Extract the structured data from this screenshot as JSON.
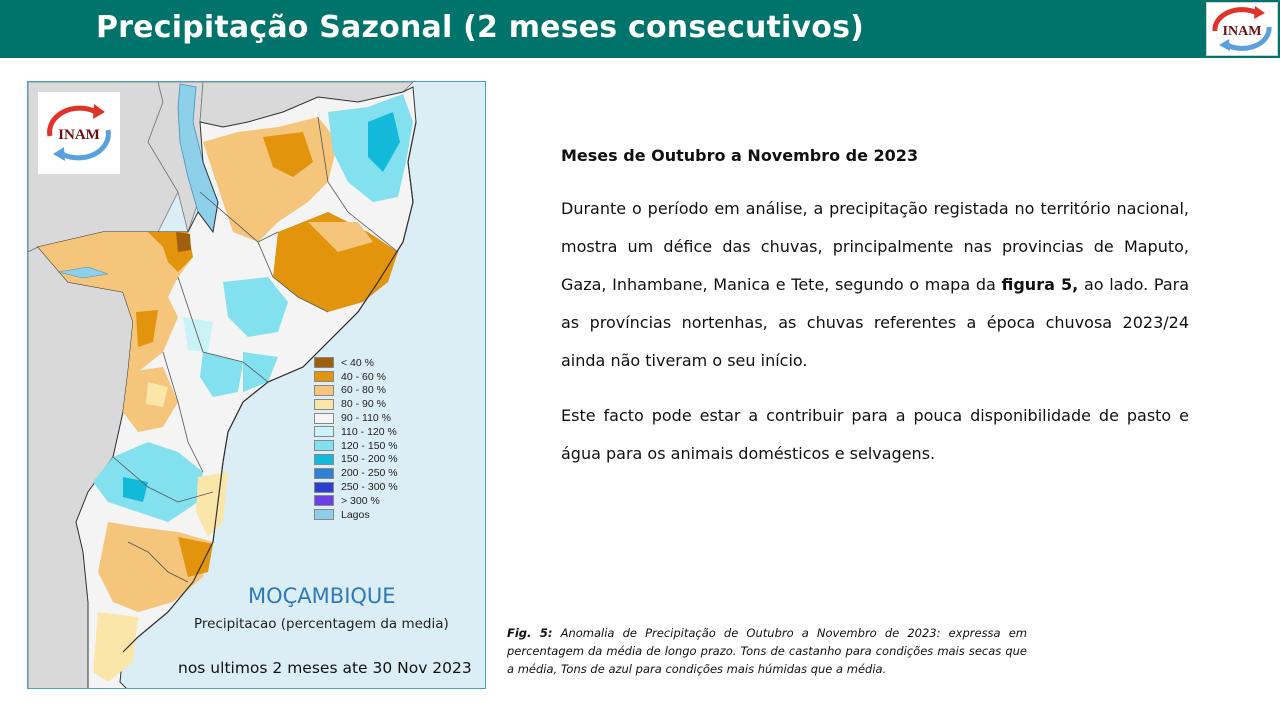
{
  "header": {
    "title": "Precipitação Sazonal (2 meses consecutivos)",
    "logo_text": "INAM"
  },
  "map": {
    "logo_text": "INAM",
    "country": "MOÇAMBIQUE",
    "subtitle": "Precipitacao (percentagem da media)",
    "period": "nos ultimos 2 meses ate 30 Nov 2023",
    "legend": [
      {
        "label": "< 40 %",
        "color": "#a0600b"
      },
      {
        "label": "40 - 60 %",
        "color": "#e2940d"
      },
      {
        "label": "60 - 80 %",
        "color": "#f4c57a"
      },
      {
        "label": "80 - 90 %",
        "color": "#fbe6aa"
      },
      {
        "label": "90 - 110 %",
        "color": "#f4f4f4"
      },
      {
        "label": "110 - 120 %",
        "color": "#c9f3f6"
      },
      {
        "label": "120 - 150 %",
        "color": "#83e0ee"
      },
      {
        "label": "150 - 200 %",
        "color": "#13b9d8"
      },
      {
        "label": "200 - 250 %",
        "color": "#2e7fd6"
      },
      {
        "label": "250 - 300 %",
        "color": "#2a3fd0"
      },
      {
        "label": "> 300 %",
        "color": "#6a3fe8"
      },
      {
        "label": "Lagos",
        "color": "#8ecfea"
      }
    ]
  },
  "content": {
    "heading": "Meses de Outubro  a Novembro  de 2023",
    "p1_before": "Durante o período em análise, a precipitação registada no território nacional, mostra um défice das chuvas, principalmente nas provincias de Maputo, Gaza, Inhambane, Manica e Tete, segundo o mapa da ",
    "p1_bold": "figura 5,",
    "p1_after": " ao lado. Para as províncias nortenhas, as chuvas referentes a época chuvosa 2023/24 ainda não tiveram o seu início.",
    "p2": "Este facto pode estar a contribuir para a pouca disponibilidade de pasto e água para os animais domésticos e selvagens."
  },
  "caption": {
    "label": "Fig. 5",
    "colon": ":",
    "text": " Anomalia de Precipitação de Outubro  a Novembro de 2023: expressa em percentagem da média de longo prazo.  Tons de castanho para condições mais secas que a média, Tons de azul para condições mais húmidas que a média."
  }
}
